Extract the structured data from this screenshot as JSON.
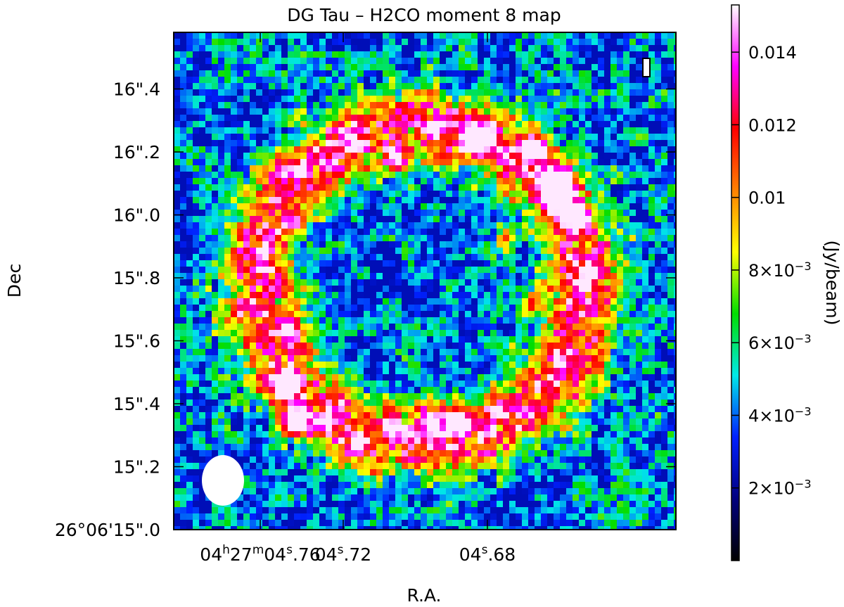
{
  "chart_data": {
    "type": "heatmap",
    "title": "DG Tau – H2CO moment 8 map",
    "xlabel": "R.A.",
    "ylabel": "Dec",
    "colorbar_label": "(Jy/beam)",
    "x_ticks": [
      {
        "label_parts": [
          "04",
          "h",
          "27",
          "m",
          "04",
          "s",
          ".76"
        ],
        "value": "04h27m04.76s"
      },
      {
        "label_parts": [
          "04",
          "s",
          ".72"
        ],
        "value": "04.72s"
      },
      {
        "label_parts": [
          "04",
          "s",
          ".68"
        ],
        "value": "04.68s"
      }
    ],
    "y_ticks": [
      {
        "label": "26°06'15\".0",
        "value": 15.0
      },
      {
        "label": "15\".2",
        "value": 15.2
      },
      {
        "label": "15\".4",
        "value": 15.4
      },
      {
        "label": "15\".6",
        "value": 15.6
      },
      {
        "label": "15\".8",
        "value": 15.8
      },
      {
        "label": "16\".0",
        "value": 16.0
      },
      {
        "label": "16\".2",
        "value": 16.2
      },
      {
        "label": "16\".4",
        "value": 16.4
      }
    ],
    "colorbar_range": [
      0.0,
      0.0153
    ],
    "colorbar_ticks": [
      {
        "text": "2×10",
        "exp": "−3",
        "value": 0.002
      },
      {
        "text": "4×10",
        "exp": "−3",
        "value": 0.004
      },
      {
        "text": "6×10",
        "exp": "−3",
        "value": 0.006
      },
      {
        "text": "8×10",
        "exp": "−3",
        "value": 0.008
      },
      {
        "text": "0.01",
        "exp": "",
        "value": 0.01
      },
      {
        "text": "0.012",
        "exp": "",
        "value": 0.012
      },
      {
        "text": "0.014",
        "exp": "",
        "value": 0.014
      }
    ],
    "colormap": [
      "#000000",
      "#00007f",
      "#0020ff",
      "#00e8e8",
      "#00dd00",
      "#ffff00",
      "#ff8000",
      "#ff0000",
      "#ff00ff",
      "#ffffff"
    ],
    "background_level": 0.0045,
    "emission_features": [
      {
        "name": "peak-northwest-ring",
        "ra_offset": -0.18,
        "dec": 16.1,
        "flux": 0.015
      },
      {
        "name": "knot-north",
        "ra_offset": -0.02,
        "dec": 16.25,
        "flux": 0.0135
      },
      {
        "name": "knot-southeast",
        "ra_offset": 0.56,
        "dec": 15.34,
        "flux": 0.0115
      },
      {
        "name": "knot-south",
        "ra_offset": 0.23,
        "dec": 15.35,
        "flux": 0.0105
      }
    ],
    "beam": {
      "major_arcsec": 0.18,
      "minor_arcsec": 0.14
    },
    "grid": false,
    "colorbar_position": "right"
  }
}
